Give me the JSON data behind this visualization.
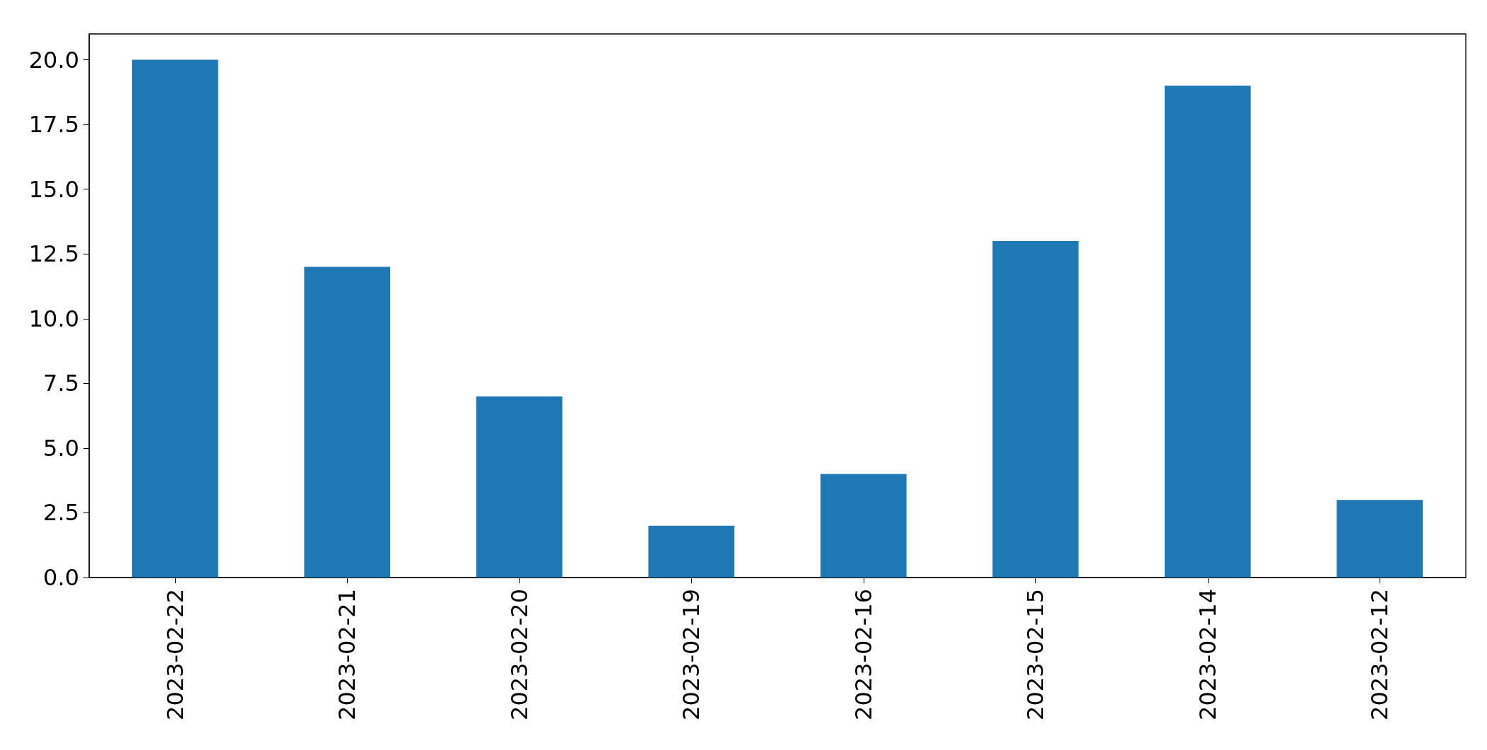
{
  "chart_data": {
    "type": "bar",
    "categories": [
      "2023-02-22",
      "2023-02-21",
      "2023-02-20",
      "2023-02-19",
      "2023-02-16",
      "2023-02-15",
      "2023-02-14",
      "2023-02-12"
    ],
    "values": [
      20,
      12,
      7,
      2,
      4,
      13,
      19,
      3
    ],
    "color": "#1f77b4",
    "ylim": [
      0,
      21
    ],
    "yticks": [
      {
        "value": 0,
        "label": "0.0"
      },
      {
        "value": 2.5,
        "label": "2.5"
      },
      {
        "value": 5,
        "label": "5.0"
      },
      {
        "value": 7.5,
        "label": "7.5"
      },
      {
        "value": 10,
        "label": "10.0"
      },
      {
        "value": 12.5,
        "label": "12.5"
      },
      {
        "value": 15,
        "label": "15.0"
      },
      {
        "value": 17.5,
        "label": "17.5"
      },
      {
        "value": 20,
        "label": "20.0"
      }
    ],
    "grid": false
  }
}
